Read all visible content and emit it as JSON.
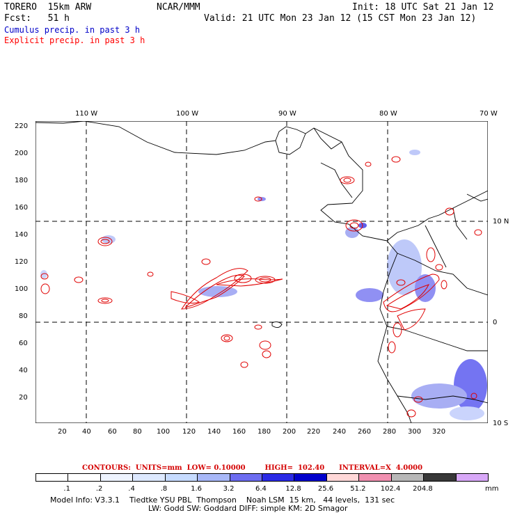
{
  "header": {
    "model": "TORERO  15km ARW",
    "org": "NCAR/MMM",
    "init": "Init: 18 UTC Sat 21 Jan 12",
    "fcst": "Fcst:   51 h",
    "valid": "Valid: 21 UTC Mon 23 Jan 12 (15 CST Mon 23 Jan 12)",
    "cumulus": "Cumulus precip. in past 3 h",
    "explicit": "Explicit precip. in past 3 h"
  },
  "colors": {
    "cumulus_text": "#0000c8",
    "explicit_text": "#ff0000",
    "contour": "#e00000",
    "grid": "#000000"
  },
  "map": {
    "lon_labels": [
      "110 W",
      "100 W",
      "90 W",
      "80 W",
      "70 W"
    ],
    "lat_labels": [
      "10 N",
      "0",
      "10 S"
    ],
    "x_ticks": [
      "20",
      "40",
      "60",
      "80",
      "100",
      "120",
      "140",
      "160",
      "180",
      "200",
      "220",
      "240",
      "260",
      "280",
      "300",
      "320"
    ],
    "y_ticks": [
      "20",
      "40",
      "60",
      "80",
      "100",
      "120",
      "140",
      "160",
      "180",
      "200",
      "220"
    ]
  },
  "legend": {
    "contours": "CONTOURS:  UNITS=mm  LOW= 0.10000        HIGH=  102.40      INTERVAL=X  4.0000",
    "values": [
      ".1",
      ".2",
      ".4",
      ".8",
      "1.6",
      "3.2",
      "6.4",
      "12.8",
      "25.6",
      "51.2",
      "102.4",
      "204.8"
    ],
    "units": "mm",
    "colors": [
      "#ffffff",
      "#ffffff",
      "#eef4ff",
      "#dde9ff",
      "#c6dbff",
      "#a8b8f8",
      "#6c6cf0",
      "#2a2ae6",
      "#0000cc",
      "#ffd8d8",
      "#f090b0",
      "#b8b8b8",
      "#383838",
      "#d8a8f8"
    ]
  },
  "footer": {
    "line1": "Model Info: V3.3.1    Tiedtke YSU PBL  Thompson    Noah LSM  15 km,   44 levels,  131 sec",
    "line2": "LW: Godd SW: Goddard DIFF: simple KM: 2D Smagor"
  }
}
